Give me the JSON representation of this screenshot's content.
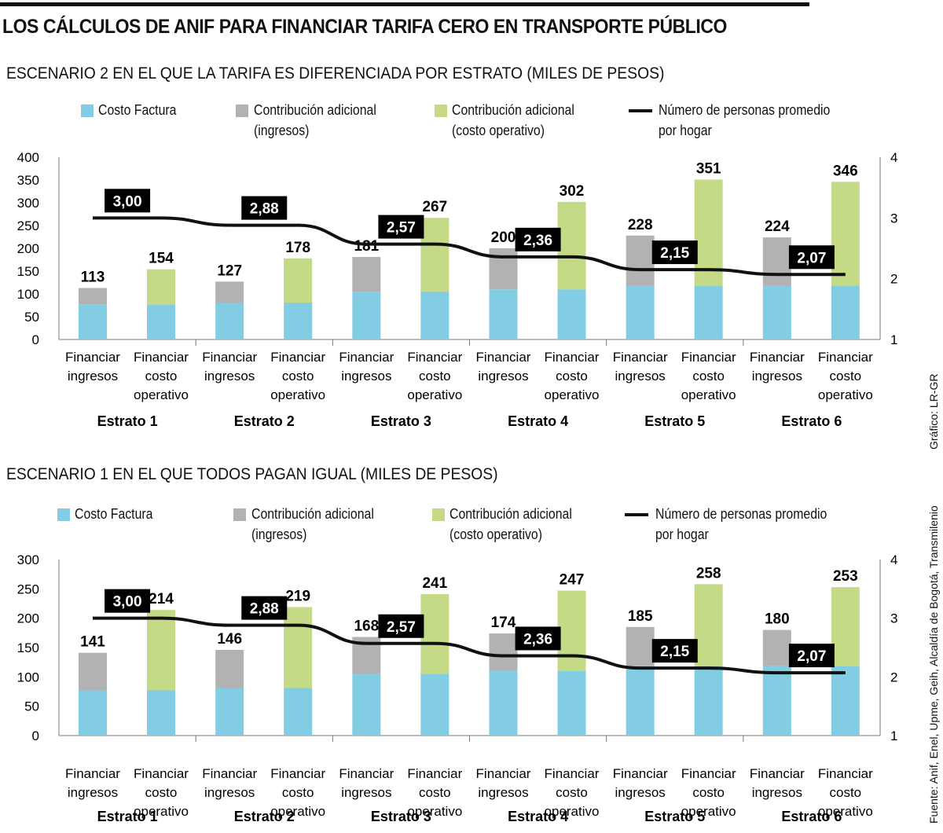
{
  "title": "LOS CÁLCULOS DE ANIF PARA FINANCIAR TARIFA CERO EN TRANSPORTE PÚBLICO",
  "credit": "Gráfico: LR-GR",
  "source": "Fuente: Anif, Enel, Upme, Geih, Alcaldía de Bogotá, Transmilenio",
  "legend": {
    "costo_factura": "Costo Factura",
    "ingresos": "Contribución adicional\n(ingresos)",
    "costo_operativo": "Contribución adicional\n(costo operativo)",
    "personas": "Número de personas promedio\npor hogar"
  },
  "colors": {
    "costo_factura": "#82cde3",
    "ingresos": "#b2b2b2",
    "costo_operativo": "#c5da87",
    "line": "#111111"
  },
  "chart_data": [
    {
      "type": "bar",
      "stacked": true,
      "title": "ESCENARIO 2 EN EL QUE LA TARIFA ES DIFERENCIADA POR ESTRATO (MILES DE PESOS)",
      "groups": [
        "Estrato 1",
        "Estrato 2",
        "Estrato 3",
        "Estrato 4",
        "Estrato 5",
        "Estrato 6"
      ],
      "bar_labels": [
        "Financiar\ningresos",
        "Financiar\ncosto\noperativo"
      ],
      "costo_factura": [
        77,
        81,
        105,
        110,
        118,
        118
      ],
      "total_ingresos": [
        113,
        127,
        181,
        200,
        228,
        224
      ],
      "total_costo_operativo": [
        154,
        178,
        267,
        302,
        351,
        346
      ],
      "personas_labels": [
        "3,00",
        "2,88",
        "2,57",
        "2,36",
        "2,15",
        "2,07"
      ],
      "personas": [
        3.0,
        2.88,
        2.57,
        2.36,
        2.15,
        2.07
      ],
      "ylim": [
        0,
        400
      ],
      "yticks": [
        "0",
        "50",
        "100",
        "150",
        "200",
        "250",
        "300",
        "350",
        "400"
      ],
      "y2lim": [
        1,
        4
      ],
      "y2ticks": [
        "1",
        "2",
        "3",
        "4"
      ],
      "grid": false,
      "legend_position": "top"
    },
    {
      "type": "bar",
      "stacked": true,
      "title": "ESCENARIO 1 EN EL QUE TODOS PAGAN IGUAL (MILES DE PESOS)",
      "groups": [
        "Estrato 1",
        "Estrato 2",
        "Estrato 3",
        "Estrato 4",
        "Estrato 5",
        "Estrato 6"
      ],
      "bar_labels": [
        "Financiar\ningresos",
        "Financiar\ncosto\noperativo"
      ],
      "costo_factura": [
        77,
        81,
        105,
        110,
        118,
        118
      ],
      "total_ingresos": [
        141,
        146,
        168,
        174,
        185,
        180
      ],
      "total_costo_operativo": [
        214,
        219,
        241,
        247,
        258,
        253
      ],
      "personas_labels": [
        "3,00",
        "2,88",
        "2,57",
        "2,36",
        "2,15",
        "2,07"
      ],
      "personas": [
        3.0,
        2.88,
        2.57,
        2.36,
        2.15,
        2.07
      ],
      "ylim": [
        0,
        300
      ],
      "yticks": [
        "0",
        "50",
        "100",
        "150",
        "200",
        "250",
        "300"
      ],
      "y2lim": [
        1,
        4
      ],
      "y2ticks": [
        "1",
        "2",
        "3",
        "4"
      ],
      "grid": false,
      "legend_position": "top"
    }
  ]
}
